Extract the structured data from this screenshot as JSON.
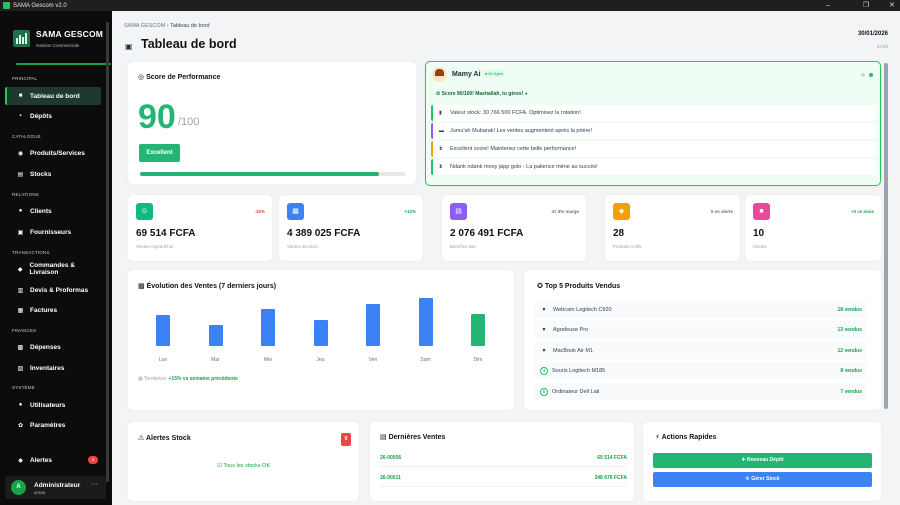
{
  "window": {
    "title": "SAMA Gescom v2.0",
    "controls": [
      "–",
      "❐",
      "✕"
    ]
  },
  "brand": {
    "name": "SAMA GESCOM",
    "subtitle": "Gestion Commerciale"
  },
  "sidebar": {
    "sections": [
      {
        "label": "PRINCIPAL",
        "items": [
          {
            "label": "Tableau de bord",
            "icon": "■"
          },
          {
            "label": "Dépôts",
            "icon": "▪"
          }
        ]
      },
      {
        "label": "CATALOGUE",
        "items": [
          {
            "label": "Produits/Services",
            "icon": "◉"
          },
          {
            "label": "Stocks",
            "icon": "▤"
          }
        ]
      },
      {
        "label": "RELATIONS",
        "items": [
          {
            "label": "Clients",
            "icon": "●"
          },
          {
            "label": "Fournisseurs",
            "icon": "▣"
          }
        ]
      },
      {
        "label": "TRANSACTIONS",
        "items": [
          {
            "label": "Commandes & Livraison",
            "icon": "◆"
          },
          {
            "label": "Devis & Proformas",
            "icon": "▥"
          },
          {
            "label": "Factures",
            "icon": "▦"
          }
        ]
      },
      {
        "label": "FINANCES",
        "items": [
          {
            "label": "Dépenses",
            "icon": "▩"
          },
          {
            "label": "Inventaires",
            "icon": "▧"
          }
        ]
      },
      {
        "label": "SYSTÈME",
        "items": [
          {
            "label": "Utilisateurs",
            "icon": "●"
          },
          {
            "label": "Paramètres",
            "icon": "✿"
          }
        ]
      }
    ],
    "alerts": {
      "label": "Alertes",
      "icon": "◆",
      "count": "4"
    },
    "user": {
      "initial": "A",
      "name": "Administrateur",
      "role": "ADMIN",
      "more": "···"
    }
  },
  "header": {
    "breadcrumb_root": "SAMA GESCOM",
    "breadcrumb_sep": "›",
    "breadcrumb_current": "Tableau de bord",
    "title": "Tableau de bord",
    "date": "30/01/2026",
    "time": "23:59"
  },
  "performance": {
    "title": "Score de Performance",
    "score": "90",
    "max": "/100",
    "badge": "Excellent",
    "progress": 0.9
  },
  "assistant": {
    "name": "Mamy Ai",
    "status": "En ligne",
    "headline": "Score 90/100! Mashallah, tu gères!",
    "messages": [
      {
        "icon": "▮",
        "text": "Valeur stock: 30 766 500 FCFA. Optimisez la rotation!"
      },
      {
        "icon": "▬",
        "text": "Jumu'ah Mubarak! Les ventes augmentent après la prière!"
      },
      {
        "icon": "⧗",
        "text": "Excellent score! Maintenez cette belle performance!"
      },
      {
        "icon": "⧗",
        "text": "Ndank ndank mooy jàpp golo - La patience mène au succès!"
      }
    ]
  },
  "stats": [
    {
      "value": "69 514 FCFA",
      "label": "Ventes Aujourd'hui",
      "delta": "-32%",
      "icon": "⊙",
      "color": "#10b981",
      "delta_color": "#ef4444"
    },
    {
      "value": "4 389 025 FCFA",
      "label": "Ventes du Mois",
      "delta": "+12%",
      "icon": "▦",
      "color": "#3b82f6",
      "delta_color": "#16a34a"
    },
    {
      "value": "2 076 491 FCFA",
      "label": "Bénéfice Net",
      "delta": "47.3% marge",
      "icon": "▤",
      "color": "#8b5cf6",
      "delta_color": "#6b7280"
    },
    {
      "value": "28",
      "label": "Produits Actifs",
      "delta": "0 en alerte",
      "icon": "◆",
      "color": "#f59e0b",
      "delta_color": "#6b7280"
    },
    {
      "value": "10",
      "label": "Clients",
      "delta": "+3 ce mois",
      "icon": "■",
      "color": "#ec4899",
      "delta_color": "#16a34a"
    }
  ],
  "sales_chart": {
    "title": "Évolution des Ventes (7 derniers jours)",
    "trend_label": "Tendance:",
    "trend_value": "+15% vs semaine précédente",
    "chart_data": {
      "type": "bar",
      "title": "Évolution des Ventes (7 derniers jours)",
      "categories": [
        "Lun",
        "Mar",
        "Mer",
        "Jeu",
        "Ven",
        "Sam",
        "Dim"
      ],
      "values": [
        0.64,
        0.44,
        0.78,
        0.54,
        0.88,
        1.0,
        0.66
      ],
      "highlight_index": 6,
      "colors": {
        "bar": "#3b82f6",
        "highlight": "#22b573"
      }
    }
  },
  "top_products": {
    "title": "Top 5 Produits Vendus",
    "items": [
      {
        "rank_icon": "▼",
        "name": "Webcam Logitech C920",
        "sold": "18 vendus"
      },
      {
        "rank_icon": "▼",
        "name": "Agrafeuse Pro",
        "sold": "13 vendus"
      },
      {
        "rank_icon": "▼",
        "name": "MacBook Air M1",
        "sold": "12 vendus"
      },
      {
        "rank_icon": "4",
        "name": "Souris Logitech M185",
        "sold": "8 vendus"
      },
      {
        "rank_icon": "5",
        "name": "Ordinateur Dell Lati",
        "sold": "7 vendus"
      }
    ]
  },
  "stock_alerts": {
    "title": "Alertes Stock",
    "count": "0",
    "empty_message": "Tous les stocks OK"
  },
  "recent_sales": {
    "title": "Dernières Ventes",
    "items": [
      {
        "id": "26-00006",
        "amount": "69 514 FCFA"
      },
      {
        "id": "26-00011",
        "amount": "348 676 FCFA"
      }
    ]
  },
  "quick_actions": {
    "title": "Actions Rapides",
    "buttons": [
      {
        "label": "✚ Nouveau Dépôt",
        "color": "#22b573"
      },
      {
        "label": "⚙ Gérer Stock",
        "color": "#3b82f6"
      }
    ]
  }
}
